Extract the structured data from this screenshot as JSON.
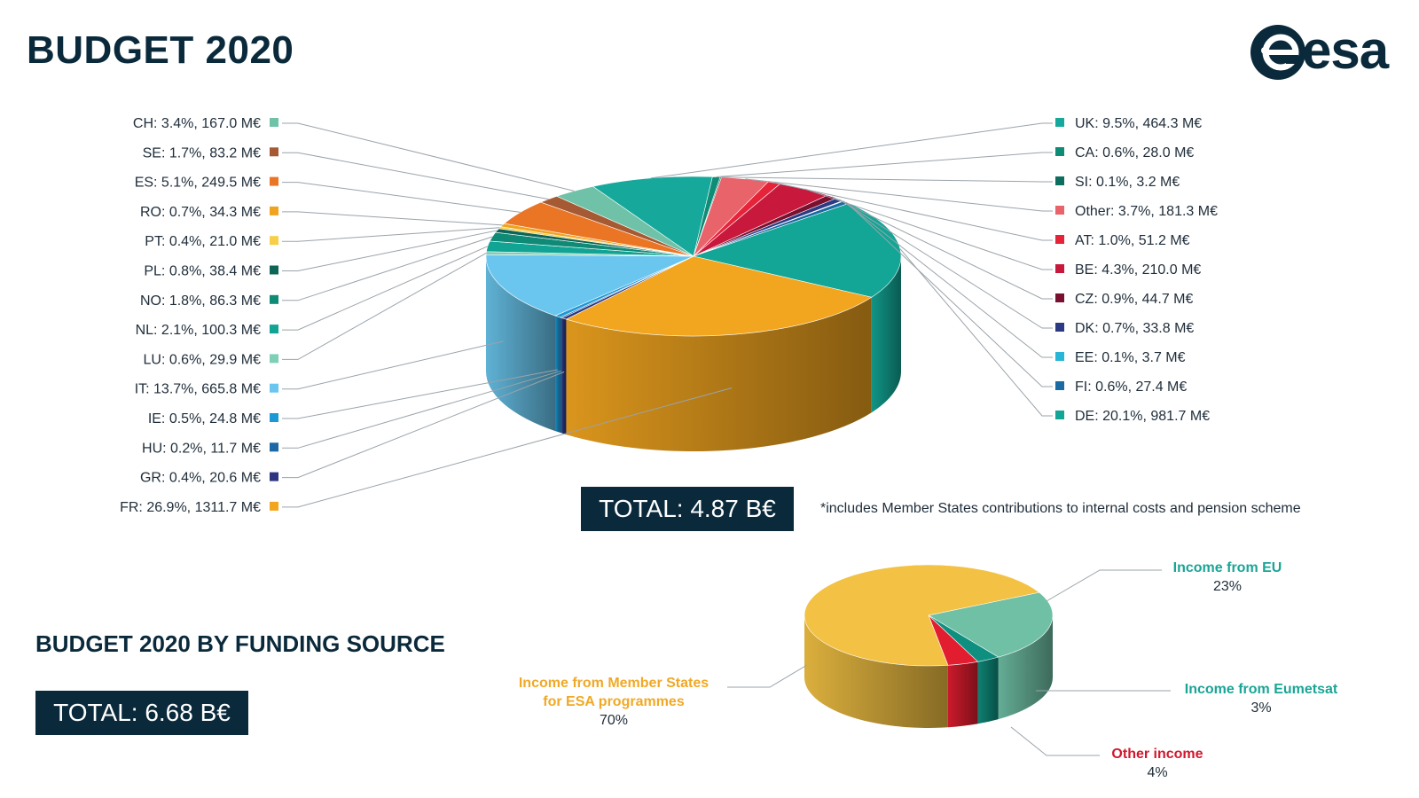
{
  "title": "BUDGET 2020",
  "logo": {
    "text": "esa"
  },
  "footnote": "*includes Member States contributions to internal costs and pension scheme",
  "chart_data": [
    {
      "type": "pie",
      "title": "BUDGET 2020",
      "total": "TOTAL: 4.87 B€",
      "unit": "M€",
      "slices": [
        {
          "name": "UK",
          "pct": 9.5,
          "value": 464.3,
          "label": "UK: 9.5%, 464.3 M€",
          "color": "#16a99b"
        },
        {
          "name": "CA",
          "pct": 0.6,
          "value": 28.0,
          "label": "CA: 0.6%, 28.0 M€",
          "color": "#0f8c75"
        },
        {
          "name": "SI",
          "pct": 0.1,
          "value": 3.2,
          "label": "SI: 0.1%, 3.2 M€",
          "color": "#0d6e5e"
        },
        {
          "name": "Other",
          "pct": 3.7,
          "value": 181.3,
          "label": "Other: 3.7%, 181.3 M€",
          "color": "#e8636a"
        },
        {
          "name": "AT",
          "pct": 1.0,
          "value": 51.2,
          "label": "AT: 1.0%, 51.2 M€",
          "color": "#e52339"
        },
        {
          "name": "BE",
          "pct": 4.3,
          "value": 210.0,
          "label": "BE: 4.3%, 210.0 M€",
          "color": "#c8193d"
        },
        {
          "name": "CZ",
          "pct": 0.9,
          "value": 44.7,
          "label": "CZ: 0.9%, 44.7 M€",
          "color": "#7a1030"
        },
        {
          "name": "DK",
          "pct": 0.7,
          "value": 33.8,
          "label": "DK: 0.7%, 33.8 M€",
          "color": "#2b3a82"
        },
        {
          "name": "EE",
          "pct": 0.1,
          "value": 3.7,
          "label": "EE: 0.1%, 3.7 M€",
          "color": "#29b6d6"
        },
        {
          "name": "FI",
          "pct": 0.6,
          "value": 27.4,
          "label": "FI: 0.6%, 27.4 M€",
          "color": "#1a6aa3"
        },
        {
          "name": "DE",
          "pct": 20.1,
          "value": 981.7,
          "label": "DE: 20.1%, 981.7 M€",
          "color": "#13a595"
        },
        {
          "name": "FR",
          "pct": 26.9,
          "value": 1311.7,
          "label": "FR: 26.9%, 1311.7 M€",
          "color": "#f2a51f"
        },
        {
          "name": "GR",
          "pct": 0.4,
          "value": 20.6,
          "label": "GR: 0.4%, 20.6 M€",
          "color": "#2c3580"
        },
        {
          "name": "HU",
          "pct": 0.2,
          "value": 11.7,
          "label": "HU: 0.2%, 11.7 M€",
          "color": "#1d68a5"
        },
        {
          "name": "IE",
          "pct": 0.5,
          "value": 24.8,
          "label": "IE: 0.5%, 24.8 M€",
          "color": "#1d98d6"
        },
        {
          "name": "IT",
          "pct": 13.7,
          "value": 665.8,
          "label": "IT: 13.7%, 665.8 M€",
          "color": "#6ac6ee"
        },
        {
          "name": "LU",
          "pct": 0.6,
          "value": 29.9,
          "label": "LU: 0.6%, 29.9 M€",
          "color": "#7fcfb6"
        },
        {
          "name": "NL",
          "pct": 2.1,
          "value": 100.3,
          "label": "NL: 2.1%, 100.3 M€",
          "color": "#11a394"
        },
        {
          "name": "NO",
          "pct": 1.8,
          "value": 86.3,
          "label": "NO: 1.8%, 86.3 M€",
          "color": "#0f8a77"
        },
        {
          "name": "PL",
          "pct": 0.8,
          "value": 38.4,
          "label": "PL: 0.8%, 38.4 M€",
          "color": "#0d6558"
        },
        {
          "name": "PT",
          "pct": 0.4,
          "value": 21.0,
          "label": "PT: 0.4%, 21.0 M€",
          "color": "#f6ce47"
        },
        {
          "name": "RO",
          "pct": 0.7,
          "value": 34.3,
          "label": "RO: 0.7%, 34.3 M€",
          "color": "#f0a31f"
        },
        {
          "name": "ES",
          "pct": 5.1,
          "value": 249.5,
          "label": "ES: 5.1%, 249.5 M€",
          "color": "#ea7625"
        },
        {
          "name": "SE",
          "pct": 1.7,
          "value": 83.2,
          "label": "SE: 1.7%, 83.2 M€",
          "color": "#a65a33"
        },
        {
          "name": "CH",
          "pct": 3.4,
          "value": 167.0,
          "label": "CH: 3.4%, 167.0 M€",
          "color": "#6fc2a8"
        }
      ]
    },
    {
      "type": "pie",
      "title": "BUDGET 2020 BY FUNDING SOURCE",
      "total": "TOTAL: 6.68 B€",
      "slices": [
        {
          "name": "Income from EU",
          "pct": 23,
          "label_lines": [
            "Income from EU"
          ],
          "pct_label": "23%",
          "color": "#6fc0a5",
          "label_color": "#1aa596"
        },
        {
          "name": "Income from Eumetsat",
          "pct": 3,
          "label_lines": [
            "Income from Eumetsat"
          ],
          "pct_label": "3%",
          "color": "#0f8f7f",
          "label_color": "#1aa596"
        },
        {
          "name": "Other income",
          "pct": 4,
          "label_lines": [
            "Other income"
          ],
          "pct_label": "4%",
          "color": "#e21d2f",
          "label_color": "#d0182e"
        },
        {
          "name": "Income from Member States for ESA programmes",
          "pct": 70,
          "label_lines": [
            "Income from Member States",
            "for ESA programmes"
          ],
          "pct_label": "70%",
          "color": "#f3c244",
          "label_color": "#f0a926"
        }
      ]
    }
  ]
}
